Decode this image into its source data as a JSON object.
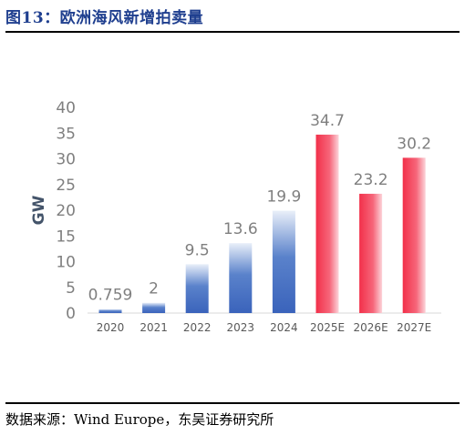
{
  "figure": {
    "title": "图13：欧洲海风新增拍卖量",
    "source": "数据来源：Wind Europe，东吴证券研究所"
  },
  "colors": {
    "title": "#1f3f8f",
    "actual_bar": "#3f69bf",
    "forecast_bar": "#f0344e",
    "tick_text": "#7f7f7f"
  },
  "chart_data": {
    "type": "bar",
    "title": "",
    "xlabel": "",
    "ylabel": "GW",
    "categories": [
      "2020",
      "2021",
      "2022",
      "2023",
      "2024",
      "2025E",
      "2026E",
      "2027E"
    ],
    "values": [
      0.759,
      2,
      9.5,
      13.6,
      19.9,
      34.7,
      23.2,
      30.2
    ],
    "data_labels": [
      "0.759",
      "2",
      "9.5",
      "13.6",
      "19.9",
      "34.7",
      "23.2",
      "30.2"
    ],
    "ylim": [
      0,
      40
    ],
    "yticks": [
      0,
      5,
      10,
      15,
      20,
      25,
      30,
      35,
      40
    ],
    "grid": false,
    "legend": "none",
    "bar_style": [
      "actual",
      "actual",
      "actual",
      "actual",
      "actual",
      "forecast",
      "forecast",
      "forecast"
    ]
  }
}
